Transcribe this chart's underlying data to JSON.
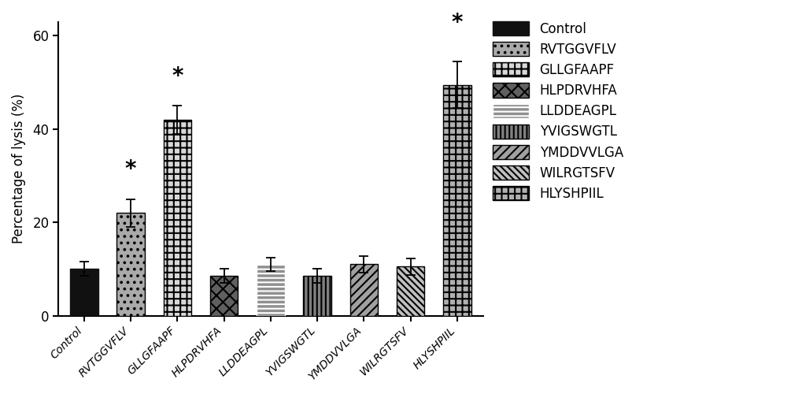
{
  "categories": [
    "Control",
    "RVTGGVFLV",
    "GLLGFAAPF",
    "HLPDRVHFA",
    "LLDDEAGPL",
    "YVIGSWGTL",
    "YMDDVVLGA",
    "WILRGTSFV",
    "HLYSHPIIL"
  ],
  "values": [
    10.0,
    22.0,
    42.0,
    8.5,
    11.0,
    8.5,
    11.0,
    10.5,
    49.5
  ],
  "errors": [
    1.5,
    3.0,
    3.0,
    1.5,
    1.5,
    1.5,
    1.8,
    1.8,
    5.0
  ],
  "significant": [
    false,
    true,
    true,
    false,
    false,
    false,
    false,
    false,
    true
  ],
  "ylabel": "Percentage of lysis (%)",
  "ylim": [
    0,
    63
  ],
  "yticks": [
    0,
    20,
    40,
    60
  ],
  "legend_labels": [
    "Control",
    "RVTGGVFLV",
    "GLLGFAAPF",
    "HLPDRVHFA",
    "LLDDEAGPL",
    "YVIGSWGTL",
    "YMDDVVLGA",
    "WILRGTSFV",
    "HLYSHPIIL"
  ],
  "background_color": "#ffffff",
  "bar_styles": [
    {
      "facecolor": "#111111",
      "hatch": "",
      "edgecolor": "#111111"
    },
    {
      "facecolor": "#aaaaaa",
      "hatch": "..",
      "edgecolor": "#000000"
    },
    {
      "facecolor": "#d8d8d8",
      "hatch": "++",
      "edgecolor": "#000000"
    },
    {
      "facecolor": "#606060",
      "hatch": "xx",
      "edgecolor": "#000000"
    },
    {
      "facecolor": "#909090",
      "hatch": "---",
      "edgecolor": "#ffffff"
    },
    {
      "facecolor": "#808080",
      "hatch": "|||",
      "edgecolor": "#000000"
    },
    {
      "facecolor": "#a0a0a0",
      "hatch": "///",
      "edgecolor": "#000000"
    },
    {
      "facecolor": "#c0c0c0",
      "hatch": "\\\\\\\\",
      "edgecolor": "#000000"
    },
    {
      "facecolor": "#b0b0b0",
      "hatch": "++",
      "edgecolor": "#000000"
    }
  ],
  "sig_star_offsets": [
    0,
    4.0,
    4.0,
    0,
    0,
    0,
    0,
    0,
    6.0
  ],
  "bar_width": 0.6
}
